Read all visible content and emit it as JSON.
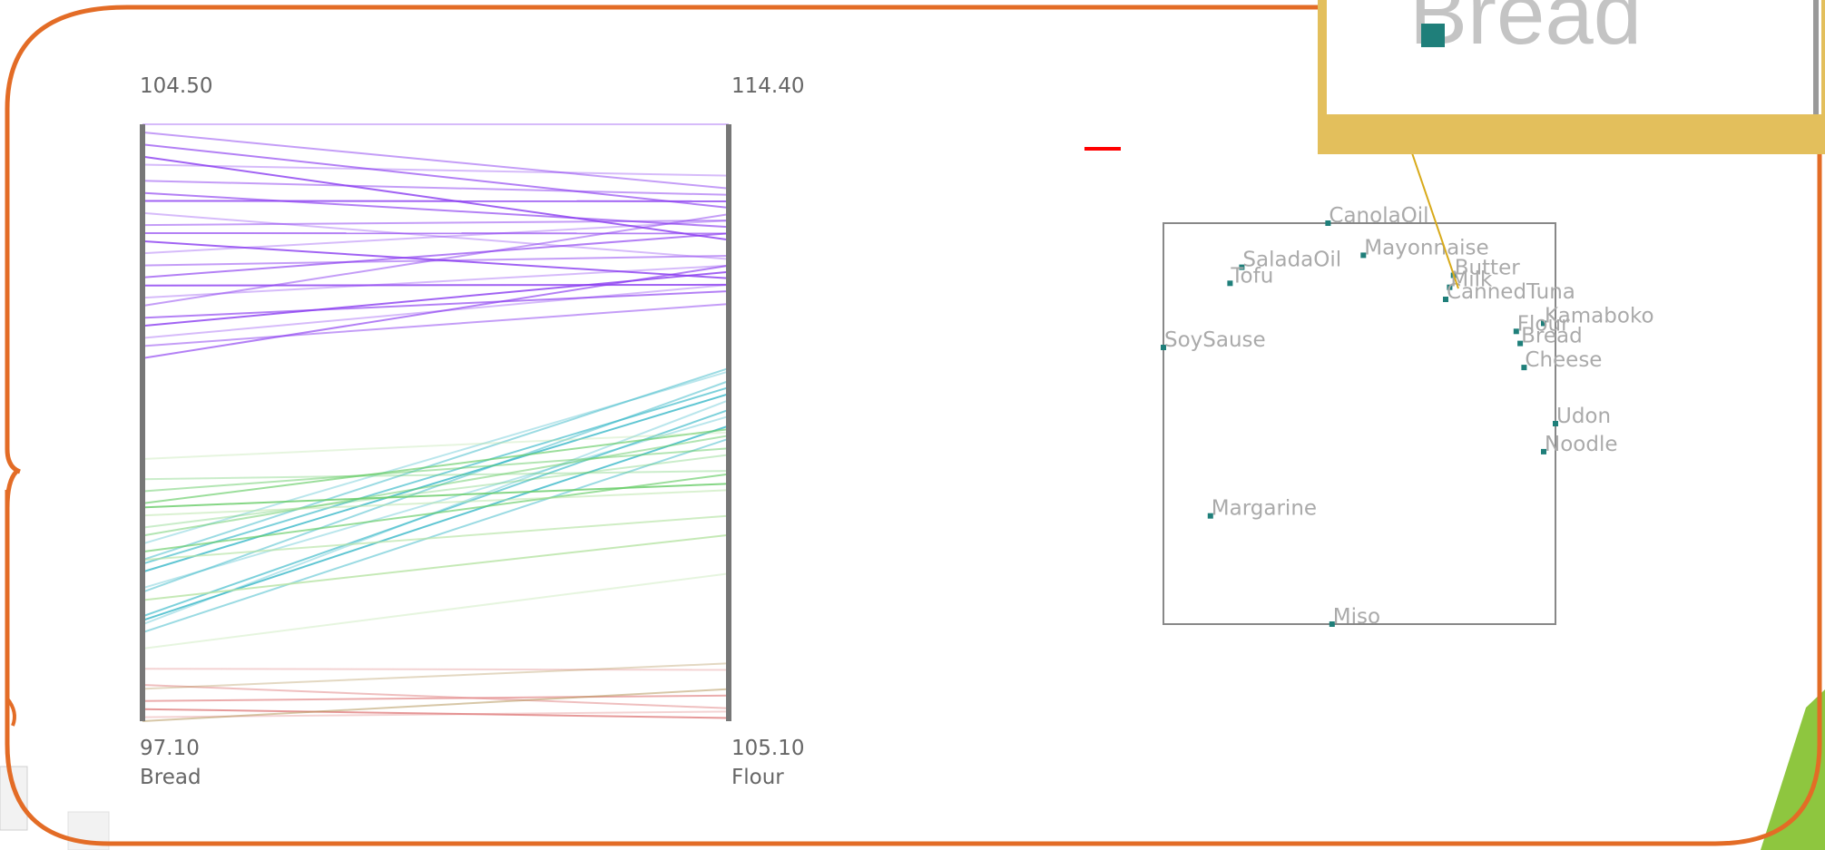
{
  "colors": {
    "frame": "#e36c26",
    "callout_fill": "#e3bf5c",
    "axis": "#777777",
    "marker": "#1f7f7a",
    "red_mark": "#ff0000",
    "green_strip": "#8ec63f"
  },
  "parallel_axes": {
    "left": {
      "top_value": "104.50",
      "bottom_value": "97.10",
      "name": "Bread"
    },
    "right": {
      "top_value": "114.40",
      "bottom_value": "105.10",
      "name": "Flour"
    }
  },
  "callout": {
    "text": "Bread"
  },
  "chart_data": [
    {
      "type": "line",
      "subtype": "parallel-coordinates",
      "axes": [
        "Bread",
        "Flour"
      ],
      "ranges": {
        "Bread": [
          97.1,
          104.5
        ],
        "Flour": [
          105.1,
          114.4
        ]
      },
      "series": [
        {
          "group": "purple",
          "color": "#8a3cf0",
          "values": [
            [
              104.5,
              114.4
            ],
            [
              104.4,
              113.4
            ],
            [
              104.25,
              113.1
            ],
            [
              104.1,
              112.6
            ],
            [
              104.0,
              113.6
            ],
            [
              103.8,
              113.3
            ],
            [
              103.65,
              112.8
            ],
            [
              103.55,
              113.2
            ],
            [
              103.4,
              112.3
            ],
            [
              103.25,
              112.9
            ],
            [
              103.15,
              112.7
            ],
            [
              103.05,
              112.0
            ],
            [
              102.9,
              112.9
            ],
            [
              102.75,
              112.35
            ],
            [
              102.6,
              112.7
            ],
            [
              102.5,
              111.9
            ],
            [
              102.35,
              112.2
            ],
            [
              102.25,
              113.0
            ],
            [
              102.1,
              111.8
            ],
            [
              102.0,
              112.1
            ],
            [
              101.85,
              111.9
            ],
            [
              101.75,
              111.6
            ],
            [
              101.6,
              112.2
            ]
          ]
        },
        {
          "group": "teal",
          "color": "#38b8c8",
          "values": [
            [
              99.3,
              110.55
            ],
            [
              99.1,
              110.6
            ],
            [
              99.05,
              110.3
            ],
            [
              98.95,
              110.2
            ],
            [
              98.75,
              109.85
            ],
            [
              98.7,
              110.4
            ],
            [
              98.4,
              109.95
            ],
            [
              98.35,
              109.7
            ],
            [
              98.3,
              110.1
            ],
            [
              98.2,
              109.5
            ]
          ]
        },
        {
          "group": "green",
          "color": "#66cc66",
          "values": [
            [
              100.1,
              109.0
            ],
            [
              99.95,
              109.35
            ],
            [
              99.8,
              109.65
            ],
            [
              99.75,
              108.8
            ],
            [
              99.5,
              109.25
            ],
            [
              99.4,
              109.55
            ],
            [
              99.2,
              108.95
            ]
          ]
        },
        {
          "group": "lightgreen",
          "color": "#b6e3a4",
          "values": [
            [
              100.35,
              109.6
            ],
            [
              99.65,
              108.7
            ],
            [
              99.1,
              108.3
            ],
            [
              98.6,
              108.0
            ],
            [
              98.0,
              107.4
            ]
          ]
        },
        {
          "group": "red",
          "color": "#e08080",
          "values": [
            [
              97.75,
              105.9
            ],
            [
              97.55,
              105.3
            ],
            [
              97.35,
              105.5
            ],
            [
              97.25,
              105.15
            ],
            [
              97.15,
              105.25
            ]
          ]
        },
        {
          "group": "olive",
          "color": "#b09050",
          "values": [
            [
              97.5,
              106.0
            ],
            [
              97.1,
              105.6
            ]
          ]
        }
      ]
    },
    {
      "type": "scatter",
      "subtype": "mds-projection",
      "points": [
        {
          "label": "CanolaOil",
          "x": 0.42,
          "y": 0.0
        },
        {
          "label": "SaladaOil",
          "x": 0.2,
          "y": 0.11
        },
        {
          "label": "Tofu",
          "x": 0.17,
          "y": 0.15
        },
        {
          "label": "Mayonnaise",
          "x": 0.51,
          "y": 0.08
        },
        {
          "label": "Butter",
          "x": 0.74,
          "y": 0.13
        },
        {
          "label": "Milk",
          "x": 0.73,
          "y": 0.16
        },
        {
          "label": "CannedTuna",
          "x": 0.72,
          "y": 0.19
        },
        {
          "label": "Kamaboko",
          "x": 0.97,
          "y": 0.25
        },
        {
          "label": "Flour",
          "x": 0.9,
          "y": 0.27
        },
        {
          "label": "Bread",
          "x": 0.91,
          "y": 0.3
        },
        {
          "label": "Cheese",
          "x": 0.92,
          "y": 0.36
        },
        {
          "label": "SoySause",
          "x": 0.0,
          "y": 0.31
        },
        {
          "label": "Udon",
          "x": 1.0,
          "y": 0.5
        },
        {
          "label": "Noodle",
          "x": 0.97,
          "y": 0.57
        },
        {
          "label": "Margarine",
          "x": 0.12,
          "y": 0.73
        },
        {
          "label": "Miso",
          "x": 0.43,
          "y": 1.0
        }
      ]
    }
  ]
}
